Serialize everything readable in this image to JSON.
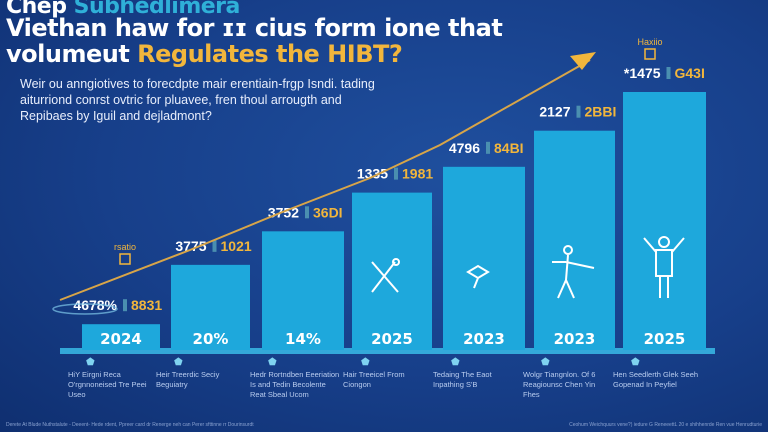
{
  "title": {
    "line1_a": "Chep",
    "line1_b": "Subhedlimera",
    "line2": "Viethan haw for ɪɪ cius form ione that",
    "line3_a": "volumeut",
    "line3_b": "Regulates the HIBT?"
  },
  "description": "Weir ou anngiotives to forecdpte mair erentiain-frgp Isndi. tading aiturriond conrst ovtric for pluavee, fren thoul arrougth and Repibaes by Iguil and dejladmont?",
  "colors": {
    "bar": "#1ea8dc",
    "accent": "#f2b63c",
    "background": "#173f8a",
    "baseline": "#3cc3ee"
  },
  "chart_data": {
    "type": "bar",
    "categories": [
      "2024",
      "20%",
      "14%",
      "2025",
      "2023",
      "2023",
      "2025"
    ],
    "values": [
      0.1,
      0.33,
      0.46,
      0.61,
      0.71,
      0.85,
      1.0
    ],
    "value_labels": [
      "4678%",
      "3775",
      "3752",
      "1335",
      "4796",
      "2127",
      "*1475"
    ],
    "secondary_labels": [
      "8831",
      "1021",
      "36DI",
      "1981",
      "84BI",
      "2BBI",
      "G43I"
    ],
    "trend_arrow": true,
    "badge_labels": [
      "rsatio",
      "Haxiio"
    ]
  },
  "captions": [
    "HiY Eirgni Reca O'rgnnoneised Tre Peei Useo",
    "Heir Treerdic Seciy Beguiatry",
    "Hedr Rortndben Eeeriation Is and Tedin Becolente Reat Sbeal Ucom",
    "Hair Treeicel From Ciongon",
    "Tedaing The Eaot Inpathing S'B",
    "Wolgr Tiangnlon. Of 6 Reagiounsc Chen Yin Fhes",
    "Hen Seedlerth Glek Seeh Gopenad In Peyfiel"
  ],
  "footer": {
    "left": "Derete At Blude Nuthstalute - Deeent- Hede rdent, Ppreer card dr Renerge neh can Perer sfttinne rr Dourinsurdt",
    "right": "Ceohum Weichquurs vene?) iedure G ReneeettL 20 e shihhenrde Ren vue  Henrudturie"
  }
}
